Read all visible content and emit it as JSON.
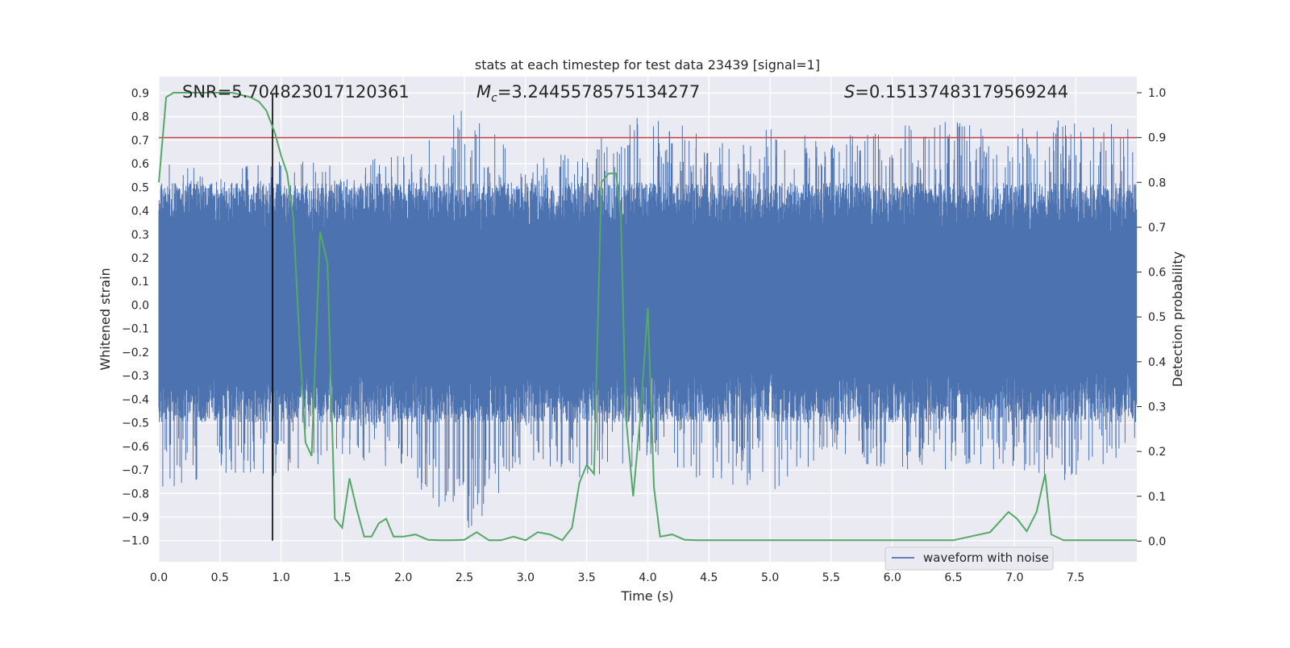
{
  "chart_data": {
    "type": "line",
    "title": "stats at each timestep for test data 23439 [signal=1]",
    "xlabel": "Time (s)",
    "ylabel": "Whitened strain",
    "y2label": "Detection probability",
    "xlim": [
      0,
      8
    ],
    "ylim": [
      -1.09,
      0.97
    ],
    "y2lim": [
      -0.046,
      1.036
    ],
    "x_ticks": [
      "0.0",
      "0.5",
      "1.0",
      "1.5",
      "2.0",
      "2.5",
      "3.0",
      "3.5",
      "4.0",
      "4.5",
      "5.0",
      "5.5",
      "6.0",
      "6.5",
      "7.0",
      "7.5"
    ],
    "y_ticks": [
      "0.9",
      "0.8",
      "0.7",
      "0.6",
      "0.5",
      "0.4",
      "0.3",
      "0.2",
      "0.1",
      "0.0",
      "-0.1",
      "-0.2",
      "-0.3",
      "-0.4",
      "-0.5",
      "-0.6",
      "-0.7",
      "-0.8",
      "-0.9",
      "-1.0"
    ],
    "y2_ticks": [
      "1.0",
      "0.9",
      "0.8",
      "0.7",
      "0.6",
      "0.5",
      "0.4",
      "0.3",
      "0.2",
      "0.1",
      "0.0"
    ],
    "annotations": {
      "snr": "SNR=5.704823017120361",
      "mc_symbol": "M",
      "mc_sub": "c",
      "mc_value": "=3.2445578575134277",
      "s_symbol": "S",
      "s_value": "=0.15137483179569244"
    },
    "threshold_y2": 0.9,
    "vline_x": 0.93,
    "legend": "waveform with noise",
    "colors": {
      "waveform": "#4c72b0",
      "probability": "#55a868",
      "threshold": "#c44e52",
      "vline": "#000000",
      "plot_bg": "#eaeaf2"
    },
    "waveform_envelope": {
      "note": "dense whitened strain noise, approximate envelope",
      "x": [
        0,
        0.5,
        1.0,
        1.5,
        2.0,
        2.5,
        3.0,
        3.5,
        4.0,
        4.5,
        5.0,
        5.5,
        6.0,
        6.5,
        7.0,
        7.5,
        8.0
      ],
      "max": [
        0.6,
        0.58,
        0.62,
        0.6,
        0.65,
        0.85,
        0.62,
        0.68,
        0.88,
        0.7,
        0.75,
        0.72,
        0.78,
        0.8,
        0.75,
        0.8,
        0.76
      ],
      "min": [
        -0.8,
        -0.72,
        -0.73,
        -0.65,
        -0.7,
        -1.0,
        -0.65,
        -0.75,
        -0.7,
        -0.75,
        -0.8,
        -0.65,
        -0.7,
        -0.7,
        -0.7,
        -0.76,
        -0.6
      ]
    },
    "detection_probability": {
      "x": [
        0.0,
        0.06,
        0.12,
        0.2,
        0.4,
        0.6,
        0.75,
        0.82,
        0.88,
        0.95,
        1.0,
        1.05,
        1.1,
        1.15,
        1.2,
        1.25,
        1.32,
        1.38,
        1.44,
        1.5,
        1.56,
        1.62,
        1.68,
        1.74,
        1.8,
        1.86,
        1.92,
        2.0,
        2.1,
        2.2,
        2.3,
        2.4,
        2.5,
        2.6,
        2.7,
        2.8,
        2.9,
        3.0,
        3.1,
        3.2,
        3.3,
        3.38,
        3.44,
        3.5,
        3.56,
        3.62,
        3.68,
        3.74,
        3.78,
        3.82,
        3.88,
        3.94,
        4.0,
        4.05,
        4.1,
        4.2,
        4.3,
        4.4,
        4.5,
        5.0,
        5.5,
        6.0,
        6.5,
        6.8,
        6.95,
        7.02,
        7.1,
        7.18,
        7.25,
        7.3,
        7.4,
        8.0
      ],
      "y": [
        0.8,
        0.99,
        1.0,
        1.0,
        1.0,
        1.0,
        0.99,
        0.98,
        0.96,
        0.91,
        0.86,
        0.82,
        0.72,
        0.45,
        0.22,
        0.19,
        0.69,
        0.62,
        0.05,
        0.03,
        0.14,
        0.07,
        0.01,
        0.01,
        0.04,
        0.05,
        0.01,
        0.01,
        0.015,
        0.003,
        0.002,
        0.002,
        0.003,
        0.02,
        0.002,
        0.002,
        0.01,
        0.002,
        0.02,
        0.015,
        0.002,
        0.03,
        0.13,
        0.17,
        0.15,
        0.8,
        0.82,
        0.82,
        0.72,
        0.28,
        0.1,
        0.28,
        0.52,
        0.12,
        0.01,
        0.015,
        0.003,
        0.002,
        0.002,
        0.002,
        0.002,
        0.002,
        0.002,
        0.02,
        0.065,
        0.05,
        0.022,
        0.065,
        0.15,
        0.015,
        0.002,
        0.002
      ]
    }
  }
}
